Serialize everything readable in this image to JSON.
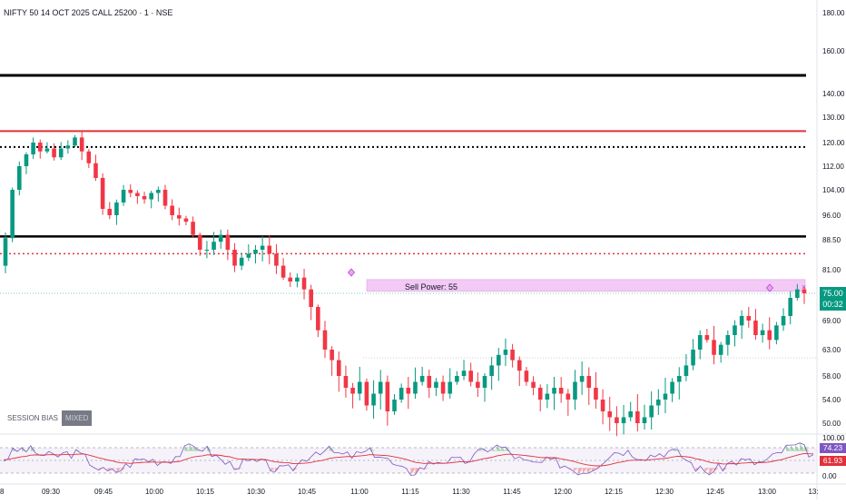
{
  "chart": {
    "title": "NIFTY 50 14 OCT 2025 CALL 25200 · 1 · NSE"
  },
  "price_axis": {
    "min": 45,
    "max": 185,
    "ticks": [
      "180.00",
      "160.00",
      "140.00",
      "130.00",
      "120.00",
      "112.00",
      "104.00",
      "96.00",
      "88.50",
      "81.00",
      "69.00",
      "63.00",
      "58.00",
      "54.00",
      "50.00"
    ]
  },
  "current_price": {
    "value": "75.00",
    "countdown": "00:32",
    "color": "#089981"
  },
  "time_axis": {
    "labels": [
      "8",
      "09:30",
      "09:45",
      "10:00",
      "10:15",
      "10:30",
      "10:45",
      "11:00",
      "11:15",
      "11:30",
      "11:45",
      "12:00",
      "12:15",
      "12:30",
      "12:45",
      "13:00",
      "13:"
    ]
  },
  "levels": [
    {
      "price": 148.5,
      "style": "solid",
      "color": "#000000",
      "width": 3
    },
    {
      "price": 124.5,
      "style": "solid",
      "color": "#e0323a",
      "width": 2
    },
    {
      "price": 118.5,
      "style": "dotted",
      "color": "#000000",
      "width": 2
    },
    {
      "price": 89.5,
      "style": "solid",
      "color": "#000000",
      "width": 2.5
    },
    {
      "price": 85.0,
      "style": "dotted",
      "color": "#e0323a",
      "width": 1.5
    }
  ],
  "sell_power": {
    "label": "Sell Power: 55",
    "value": 55,
    "zone_top": 78.5,
    "zone_bottom": 75.5,
    "color": "#f3c9f5"
  },
  "session_bias": {
    "label": "SESSION BIAS",
    "value": "MIXED"
  },
  "rsi_panel": {
    "ticks": [
      "100.00",
      "0.00"
    ],
    "rsi_value": "74.23",
    "ma_value": "61.93",
    "rsi_color": "#7e57c2",
    "ma_color": "#e0323a"
  },
  "chart_data": {
    "type": "candlestick",
    "ylim": [
      45,
      185
    ],
    "up_color": "#089981",
    "down_color": "#f23645",
    "close_series": [
      {
        "t": "09:24",
        "c": 89
      },
      {
        "t": "09:26",
        "c": 104
      },
      {
        "t": "09:28",
        "c": 112
      },
      {
        "t": "09:30",
        "c": 116
      },
      {
        "t": "09:32",
        "c": 120
      },
      {
        "t": "09:34",
        "c": 117
      },
      {
        "t": "09:36",
        "c": 118
      },
      {
        "t": "09:38",
        "c": 115
      },
      {
        "t": "09:40",
        "c": 118
      },
      {
        "t": "09:42",
        "c": 119
      },
      {
        "t": "09:44",
        "c": 122
      },
      {
        "t": "09:46",
        "c": 117
      },
      {
        "t": "09:48",
        "c": 113
      },
      {
        "t": "09:50",
        "c": 108
      },
      {
        "t": "09:52",
        "c": 98
      },
      {
        "t": "09:54",
        "c": 96
      },
      {
        "t": "09:56",
        "c": 100
      },
      {
        "t": "09:58",
        "c": 104
      },
      {
        "t": "10:00",
        "c": 103
      },
      {
        "t": "10:02",
        "c": 102
      },
      {
        "t": "10:04",
        "c": 101
      },
      {
        "t": "10:06",
        "c": 103
      },
      {
        "t": "10:08",
        "c": 104
      },
      {
        "t": "10:10",
        "c": 99
      },
      {
        "t": "10:12",
        "c": 96
      },
      {
        "t": "10:14",
        "c": 95
      },
      {
        "t": "10:16",
        "c": 94
      },
      {
        "t": "10:18",
        "c": 90
      },
      {
        "t": "10:20",
        "c": 86
      },
      {
        "t": "10:22",
        "c": 86
      },
      {
        "t": "10:24",
        "c": 88
      },
      {
        "t": "10:26",
        "c": 90
      },
      {
        "t": "10:28",
        "c": 86
      },
      {
        "t": "10:30",
        "c": 82
      },
      {
        "t": "10:32",
        "c": 84
      },
      {
        "t": "10:34",
        "c": 85
      },
      {
        "t": "10:36",
        "c": 86
      },
      {
        "t": "10:38",
        "c": 87
      },
      {
        "t": "10:40",
        "c": 85
      },
      {
        "t": "10:42",
        "c": 82
      },
      {
        "t": "10:44",
        "c": 79
      },
      {
        "t": "10:46",
        "c": 78
      },
      {
        "t": "10:48",
        "c": 79
      },
      {
        "t": "10:50",
        "c": 76
      },
      {
        "t": "10:52",
        "c": 72
      },
      {
        "t": "10:54",
        "c": 67
      },
      {
        "t": "10:56",
        "c": 63
      },
      {
        "t": "10:58",
        "c": 61
      },
      {
        "t": "11:00",
        "c": 58
      },
      {
        "t": "11:02",
        "c": 56
      },
      {
        "t": "11:04",
        "c": 55
      },
      {
        "t": "11:06",
        "c": 57
      },
      {
        "t": "11:08",
        "c": 53
      },
      {
        "t": "11:10",
        "c": 55
      },
      {
        "t": "11:12",
        "c": 57
      },
      {
        "t": "11:14",
        "c": 52
      },
      {
        "t": "11:16",
        "c": 54
      },
      {
        "t": "11:18",
        "c": 56
      },
      {
        "t": "11:20",
        "c": 55
      },
      {
        "t": "11:22",
        "c": 57
      },
      {
        "t": "11:24",
        "c": 58
      },
      {
        "t": "11:26",
        "c": 56
      },
      {
        "t": "11:28",
        "c": 57
      },
      {
        "t": "11:30",
        "c": 55
      },
      {
        "t": "11:32",
        "c": 57
      },
      {
        "t": "11:34",
        "c": 58
      },
      {
        "t": "11:36",
        "c": 59
      },
      {
        "t": "11:38",
        "c": 57
      },
      {
        "t": "11:40",
        "c": 56
      },
      {
        "t": "11:42",
        "c": 58
      },
      {
        "t": "11:44",
        "c": 60
      },
      {
        "t": "11:46",
        "c": 62
      },
      {
        "t": "11:48",
        "c": 63
      },
      {
        "t": "11:50",
        "c": 61
      },
      {
        "t": "11:52",
        "c": 59
      },
      {
        "t": "11:54",
        "c": 57
      },
      {
        "t": "11:56",
        "c": 56
      },
      {
        "t": "11:58",
        "c": 54
      },
      {
        "t": "12:00",
        "c": 55
      },
      {
        "t": "12:02",
        "c": 56
      },
      {
        "t": "12:04",
        "c": 55
      },
      {
        "t": "12:06",
        "c": 54
      },
      {
        "t": "12:08",
        "c": 57
      },
      {
        "t": "12:10",
        "c": 58
      },
      {
        "t": "12:12",
        "c": 56
      },
      {
        "t": "12:14",
        "c": 54
      },
      {
        "t": "12:16",
        "c": 52
      },
      {
        "t": "12:18",
        "c": 51
      },
      {
        "t": "12:20",
        "c": 50
      },
      {
        "t": "12:22",
        "c": 51
      },
      {
        "t": "12:24",
        "c": 52
      },
      {
        "t": "12:26",
        "c": 50
      },
      {
        "t": "12:28",
        "c": 51
      },
      {
        "t": "12:30",
        "c": 53
      },
      {
        "t": "12:32",
        "c": 54
      },
      {
        "t": "12:34",
        "c": 55
      },
      {
        "t": "12:36",
        "c": 57
      },
      {
        "t": "12:38",
        "c": 58
      },
      {
        "t": "12:40",
        "c": 60
      },
      {
        "t": "12:42",
        "c": 63
      },
      {
        "t": "12:44",
        "c": 66
      },
      {
        "t": "12:46",
        "c": 65
      },
      {
        "t": "12:48",
        "c": 62
      },
      {
        "t": "12:50",
        "c": 64
      },
      {
        "t": "12:52",
        "c": 66
      },
      {
        "t": "12:54",
        "c": 68
      },
      {
        "t": "12:56",
        "c": 70
      },
      {
        "t": "12:58",
        "c": 69
      },
      {
        "t": "13:00",
        "c": 66
      },
      {
        "t": "13:02",
        "c": 67
      },
      {
        "t": "13:04",
        "c": 65
      },
      {
        "t": "13:06",
        "c": 68
      },
      {
        "t": "13:08",
        "c": 70
      },
      {
        "t": "13:10",
        "c": 74
      },
      {
        "t": "13:12",
        "c": 76
      },
      {
        "t": "13:14",
        "c": 75
      }
    ]
  }
}
